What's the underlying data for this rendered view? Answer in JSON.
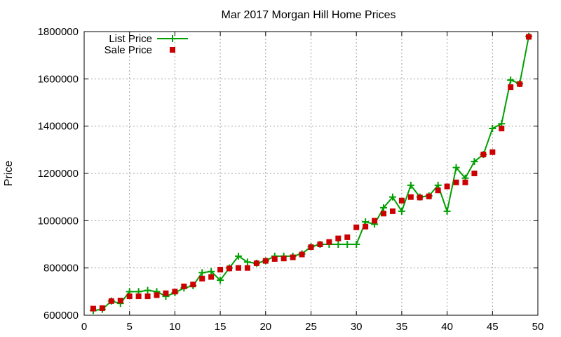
{
  "chart_data": {
    "type": "line",
    "title": "Mar 2017 Morgan Hill Home Prices",
    "xlabel": "",
    "ylabel": "Price",
    "xlim": [
      0,
      50
    ],
    "ylim": [
      600000,
      1800000
    ],
    "x_ticks": [
      "0",
      "5",
      "10",
      "15",
      "20",
      "25",
      "30",
      "35",
      "40",
      "45",
      "50"
    ],
    "y_ticks": [
      "600000",
      "800000",
      "1000000",
      "1200000",
      "1400000",
      "1600000",
      "1800000"
    ],
    "grid": true,
    "legend_position": "top-left",
    "x": [
      1,
      2,
      3,
      4,
      5,
      6,
      7,
      8,
      9,
      10,
      11,
      12,
      13,
      14,
      15,
      16,
      17,
      18,
      19,
      20,
      21,
      22,
      23,
      24,
      25,
      26,
      27,
      28,
      29,
      30,
      31,
      32,
      33,
      34,
      35,
      36,
      37,
      38,
      39,
      40,
      41,
      42,
      43,
      44,
      45,
      46,
      47,
      48,
      49
    ],
    "series": [
      {
        "name": "List Price",
        "color": "#00a000",
        "style": "line-plus",
        "values": [
          620000,
          625000,
          660000,
          650000,
          700000,
          700000,
          705000,
          700000,
          680000,
          695000,
          715000,
          725000,
          780000,
          785000,
          748000,
          800000,
          850000,
          825000,
          820000,
          830000,
          850000,
          850000,
          850000,
          860000,
          890000,
          900000,
          900000,
          900000,
          900000,
          900000,
          995000,
          985000,
          1055000,
          1100000,
          1040000,
          1150000,
          1100000,
          1105000,
          1150000,
          1040000,
          1225000,
          1180000,
          1250000,
          1280000,
          1390000,
          1410000,
          1595000,
          1580000,
          1780000
        ]
      },
      {
        "name": "Sale Price",
        "color": "#cc0000",
        "style": "square",
        "values": [
          628000,
          630000,
          660000,
          662000,
          680000,
          680000,
          680000,
          685000,
          693000,
          700000,
          722000,
          730000,
          755000,
          762000,
          793000,
          798000,
          800000,
          800000,
          820000,
          830000,
          838000,
          840000,
          845000,
          857000,
          888000,
          900000,
          910000,
          925000,
          930000,
          972000,
          975000,
          1000000,
          1030000,
          1040000,
          1085000,
          1100000,
          1098000,
          1103000,
          1128000,
          1145000,
          1162000,
          1162000,
          1200000,
          1280000,
          1290000,
          1390000,
          1565000,
          1578000,
          1778000
        ]
      }
    ]
  }
}
